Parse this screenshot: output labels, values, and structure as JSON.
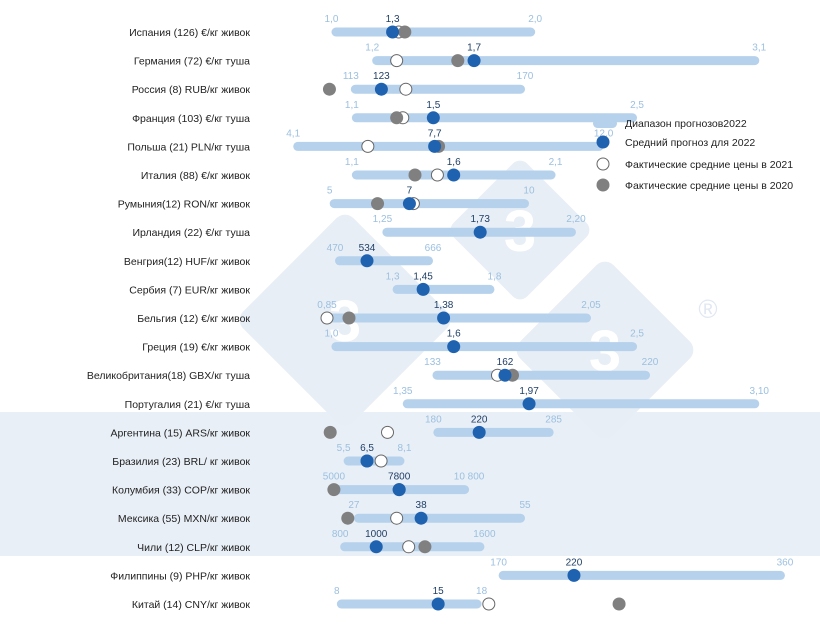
{
  "chart_data": {
    "type": "range-dot",
    "colors": {
      "range_bar": "#b5d1ec",
      "mean_2022": "#1f62b0",
      "actual_2021_stroke": "#666666",
      "actual_2020": "#808080",
      "range_label": "#9cc0e0",
      "mean_label": "#1f3f66",
      "band": "#e9eff7",
      "watermark": "#e8eef6"
    },
    "legend": {
      "placement": "right",
      "entries": [
        {
          "key": "range",
          "label": "Диапазон прогнозов2022"
        },
        {
          "key": "mean",
          "label": "Средний прогноз для 2022"
        },
        {
          "key": "actual_2021",
          "label": "Фактические средние цены в 2021"
        },
        {
          "key": "actual_2020",
          "label": "Фактические средние цены в 2020"
        }
      ]
    },
    "rows": [
      {
        "label": "Испания (126) €/кг живок",
        "min": 1.0,
        "max": 2.0,
        "min_label": "1,0",
        "max_label": "2,0",
        "mean": 1.3,
        "mean_label": "1,3",
        "actual_2021": 1.33,
        "actual_2020": 1.36,
        "scale": [
          0.6,
          3.3
        ]
      },
      {
        "label": "Германия (72) €/кг туша",
        "min": 1.2,
        "max": 3.1,
        "min_label": "1,2",
        "max_label": "3,1",
        "mean": 1.7,
        "mean_label": "1,7",
        "actual_2021": 1.32,
        "actual_2020": 1.62,
        "scale": [
          0.6,
          3.3
        ]
      },
      {
        "label": "Россия (8) RUB/кг живок",
        "min": 113,
        "max": 170,
        "min_label": "113",
        "max_label": "170",
        "mean": 123,
        "mean_label": "123",
        "actual_2021": 131,
        "actual_2020": 106,
        "scale": [
          80,
          260
        ]
      },
      {
        "label": "Франция (103) €/кг туша",
        "min": 1.1,
        "max": 2.5,
        "min_label": "1,1",
        "max_label": "2,5",
        "mean": 1.5,
        "mean_label": "1,5",
        "actual_2021": 1.35,
        "actual_2020": 1.32,
        "scale": [
          0.6,
          3.3
        ]
      },
      {
        "label": "Польша (21) PLN/кг туша",
        "min": 4.1,
        "max": 12.0,
        "min_label": "4,1",
        "max_label": "12,0",
        "mean": 7.7,
        "mean_label": "7,7",
        "actual_2021": 6.0,
        "actual_2020": 7.8,
        "scale": [
          3.0,
          17.0
        ]
      },
      {
        "label": "Италия (88) €/кг живок",
        "min": 1.1,
        "max": 2.1,
        "min_label": "1,1",
        "max_label": "2,1",
        "mean": 1.6,
        "mean_label": "1,6",
        "actual_2021": 1.52,
        "actual_2020": 1.41,
        "scale": [
          0.6,
          3.3
        ]
      },
      {
        "label": "Румыния(12) RON/кг живок",
        "min": 5,
        "max": 10,
        "min_label": "5",
        "max_label": "10",
        "mean": 7,
        "mean_label": "7",
        "actual_2021": 7.1,
        "actual_2020": 6.2,
        "scale": [
          3.0,
          16.8
        ]
      },
      {
        "label": "Ирландия (22) €/кг туша",
        "min": 1.25,
        "max": 2.2,
        "min_label": "1,25",
        "max_label": "2,20",
        "mean": 1.73,
        "mean_label": "1,73",
        "actual_2021": null,
        "actual_2020": null,
        "scale": [
          0.6,
          3.3
        ]
      },
      {
        "label": "Венгрия(12) HUF/кг живок",
        "min": 470,
        "max": 666,
        "min_label": "470",
        "max_label": "666",
        "mean": 534,
        "mean_label": "534",
        "actual_2021": null,
        "actual_2020": null,
        "scale": [
          300,
          1400
        ]
      },
      {
        "label": "Сербия (7) EUR/кг живок",
        "min": 1.3,
        "max": 1.8,
        "min_label": "1,3",
        "max_label": "1,8",
        "mean": 1.45,
        "mean_label": "1,45",
        "actual_2021": null,
        "actual_2020": null,
        "scale": [
          0.6,
          3.3
        ]
      },
      {
        "label": "Бельгия (12) €/кг живок",
        "min": 0.85,
        "max": 2.05,
        "min_label": "0,85",
        "max_label": "2,05",
        "mean": 1.38,
        "mean_label": "1,38",
        "actual_2021": 0.85,
        "actual_2020": 0.95,
        "scale": [
          0.5,
          3.0
        ]
      },
      {
        "label": "Греция (19) €/кг живок",
        "min": 1.0,
        "max": 2.5,
        "min_label": "1,0",
        "max_label": "2,5",
        "mean": 1.6,
        "mean_label": "1,6",
        "actual_2021": null,
        "actual_2020": null,
        "scale": [
          0.6,
          3.3
        ]
      },
      {
        "label": "Великобритания(18) GBX/кг туша",
        "min": 133,
        "max": 220,
        "min_label": "133",
        "max_label": "220",
        "mean": 162,
        "mean_label": "162",
        "actual_2021": 159,
        "actual_2020": 165,
        "scale": [
          60,
          280
        ]
      },
      {
        "label": "Португалия (21) €/кг туша",
        "min": 1.35,
        "max": 3.1,
        "min_label": "1,35",
        "max_label": "3,10",
        "mean": 1.97,
        "mean_label": "1,97",
        "actual_2021": null,
        "actual_2020": null,
        "scale": [
          0.6,
          3.3
        ]
      },
      {
        "label": "Аргентина (15) ARS/кг живок",
        "min": 180,
        "max": 285,
        "min_label": "180",
        "max_label": "285",
        "mean": 220,
        "mean_label": "220",
        "actual_2021": 140,
        "actual_2020": 90,
        "scale": [
          20,
          500
        ]
      },
      {
        "label": "Бразилия (23) BRL/ кг живок",
        "min": 5.5,
        "max": 8.1,
        "min_label": "5,5",
        "max_label": "8,1",
        "mean": 6.5,
        "mean_label": "6,5",
        "actual_2021": 7.1,
        "actual_2020": 6.5,
        "scale": [
          1.5,
          25
        ]
      },
      {
        "label": "Колумбия (33) COP/кг живок",
        "min": 5000,
        "max": 10800,
        "min_label": "5000",
        "max_label": "10 800",
        "mean": 7800,
        "mean_label": "7800",
        "actual_2021": 7800,
        "actual_2020": 5000,
        "scale": [
          1400,
          25000
        ]
      },
      {
        "label": "Мексика (55) MXN/кг живок",
        "min": 27,
        "max": 55,
        "min_label": "27",
        "max_label": "55",
        "mean": 38,
        "mean_label": "38",
        "actual_2021": 34,
        "actual_2020": 26,
        "scale": [
          10,
          100
        ]
      },
      {
        "label": "Чили (12) CLP/кг живок",
        "min": 800,
        "max": 1600,
        "min_label": "800",
        "max_label": "1600",
        "mean": 1000,
        "mean_label": "1000",
        "actual_2021": 1180,
        "actual_2020": 1270,
        "scale": [
          300,
          3350
        ]
      },
      {
        "label": "Филиппины (9) PHP/кг живок",
        "min": 170,
        "max": 360,
        "min_label": "170",
        "max_label": "360",
        "mean": 220,
        "mean_label": "220",
        "actual_2021": null,
        "actual_2020": null,
        "scale": [
          5,
          370
        ]
      },
      {
        "label": "Китай (14) CNY/кг живок",
        "min": 8,
        "max": 18,
        "min_label": "8",
        "max_label": "18",
        "mean": 15,
        "mean_label": "15",
        "actual_2021": 18.5,
        "actual_2020": 27.5,
        "scale": [
          2,
          40
        ]
      }
    ]
  },
  "watermark": {
    "digits": [
      "3",
      "3",
      "3"
    ],
    "registered_mark": "®"
  }
}
